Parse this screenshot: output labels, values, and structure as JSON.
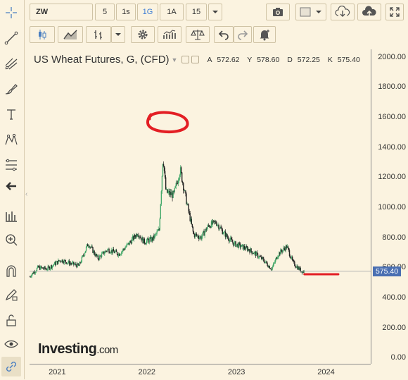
{
  "toolbar": {
    "symbol": "ZW",
    "intervals": [
      "5",
      "1s",
      "1G",
      "1A",
      "15"
    ],
    "active_interval": "1G",
    "icons_row1": [
      "dropdown-icon",
      "camera-icon",
      "color-swatch-icon",
      "dropdown-icon",
      "cloud-download-icon",
      "cloud-upload-icon",
      "fullscreen-icon"
    ],
    "icons_row2": [
      "candlestick-icon",
      "line-chart-icon",
      "bar-chart-icon",
      "dropdown-icon",
      "gear-icon",
      "indicators-icon",
      "scales-icon",
      "undo-icon",
      "redo-icon",
      "alert-bell-icon"
    ]
  },
  "left_tools": [
    "crosshair-icon",
    "trendline-icon",
    "pitchfork-icon",
    "brush-icon",
    "text-icon",
    "pattern-icon",
    "fib-icon",
    "back-arrow-icon",
    "long-position-icon",
    "zoom-icon",
    "magnet-icon",
    "lock-pencil-icon",
    "unlock-icon",
    "eye-icon",
    "link-icon"
  ],
  "legend": {
    "title": "US Wheat Futures, G, (CFD)",
    "ohlc": [
      {
        "label": "A",
        "value": "572.62"
      },
      {
        "label": "Y",
        "value": "578.60"
      },
      {
        "label": "D",
        "value": "572.25"
      },
      {
        "label": "K",
        "value": "575.40"
      }
    ]
  },
  "watermark": {
    "brand": "Investing",
    "domain": ".com"
  },
  "colors": {
    "background": "#fbf3e0",
    "up": "#44a96a",
    "down": "#222222",
    "price_line": "#4a6fb2",
    "annotation": "#e31e24"
  },
  "chart_data": {
    "type": "candlestick",
    "title": "US Wheat Futures, G, (CFD)",
    "x_ticks": [
      "2021",
      "2022",
      "2023",
      "2024"
    ],
    "y_ticks": [
      "0.00",
      "200.00",
      "400.00",
      "600.00",
      "800.00",
      "1000.00",
      "1200.00",
      "1400.00",
      "1600.00",
      "1800.00",
      "2000.00"
    ],
    "ylim": [
      -40,
      2050
    ],
    "xlim": [
      "2020-09-10",
      "2024-07-01"
    ],
    "last_price": "575.40",
    "series": [
      {
        "points": [
          [
            "2020-09-10",
            540
          ],
          [
            "2020-10-15",
            600
          ],
          [
            "2020-11-20",
            590
          ],
          [
            "2021-01-15",
            650
          ],
          [
            "2021-02-20",
            630
          ],
          [
            "2021-03-30",
            610
          ],
          [
            "2021-05-07",
            760
          ],
          [
            "2021-06-15",
            660
          ],
          [
            "2021-07-25",
            720
          ],
          [
            "2021-09-10",
            690
          ],
          [
            "2021-10-20",
            760
          ],
          [
            "2021-11-25",
            830
          ],
          [
            "2021-12-20",
            770
          ],
          [
            "2022-01-25",
            790
          ],
          [
            "2022-02-20",
            850
          ],
          [
            "2022-03-08",
            1340
          ],
          [
            "2022-03-20",
            1100
          ],
          [
            "2022-04-20",
            1080
          ],
          [
            "2022-05-17",
            1250
          ],
          [
            "2022-06-10",
            1050
          ],
          [
            "2022-07-10",
            820
          ],
          [
            "2022-08-10",
            800
          ],
          [
            "2022-09-10",
            880
          ],
          [
            "2022-10-10",
            900
          ],
          [
            "2022-11-10",
            830
          ],
          [
            "2022-12-20",
            760
          ],
          [
            "2023-01-20",
            740
          ],
          [
            "2023-02-20",
            720
          ],
          [
            "2023-03-20",
            690
          ],
          [
            "2023-04-20",
            650
          ],
          [
            "2023-05-25",
            590
          ],
          [
            "2023-06-20",
            690
          ],
          [
            "2023-07-25",
            740
          ],
          [
            "2023-08-20",
            630
          ],
          [
            "2023-09-20",
            580
          ],
          [
            "2023-10-05",
            572
          ]
        ]
      }
    ],
    "annotations": [
      {
        "type": "circle",
        "at": [
          "2022-03-10",
          1560
        ],
        "color": "#e31e24"
      },
      {
        "type": "line",
        "from": [
          "2023-10-05",
          555
        ],
        "to": [
          "2024-02-20",
          555
        ],
        "color": "#e31e24"
      }
    ]
  }
}
